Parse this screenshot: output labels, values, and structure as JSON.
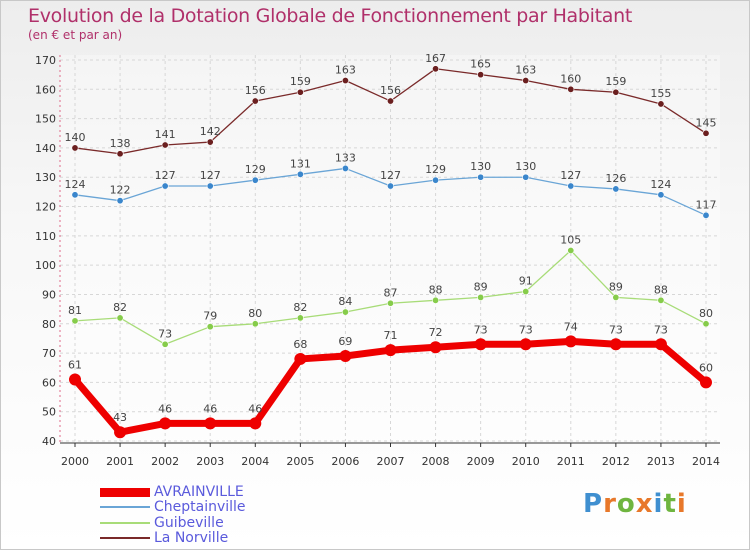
{
  "chart_data": {
    "type": "line",
    "title": "Evolution de la Dotation Globale de Fonctionnement par Habitant",
    "subtitle": "(en € et par an)",
    "xlabel": "",
    "ylabel": "",
    "ylim": [
      40,
      170
    ],
    "yticks": [
      40,
      50,
      60,
      70,
      80,
      90,
      100,
      110,
      120,
      130,
      140,
      150,
      160,
      170
    ],
    "categories": [
      "2000",
      "2001",
      "2002",
      "2003",
      "2004",
      "2005",
      "2006",
      "2007",
      "2008",
      "2009",
      "2010",
      "2011",
      "2012",
      "2013",
      "2014"
    ],
    "grid": true,
    "legend_position": "bottom-left",
    "series": [
      {
        "name": "AVRAINVILLE",
        "color": "#ee0000",
        "point_color": "#ee0000",
        "label_color": "#444444",
        "values": [
          61,
          43,
          46,
          46,
          46,
          68,
          69,
          71,
          72,
          73,
          73,
          74,
          73,
          73,
          60
        ]
      },
      {
        "name": "Cheptainville",
        "color": "#6aa5d6",
        "point_color": "#3a86cc",
        "label_color": "#444444",
        "values": [
          124,
          122,
          127,
          127,
          129,
          131,
          133,
          127,
          129,
          130,
          130,
          127,
          126,
          124,
          117
        ]
      },
      {
        "name": "Guibeville",
        "color": "#a8dc78",
        "point_color": "#86cc4a",
        "label_color": "#444444",
        "values": [
          81,
          82,
          73,
          79,
          80,
          82,
          84,
          87,
          88,
          89,
          91,
          105,
          89,
          88,
          80
        ]
      },
      {
        "name": "La Norville",
        "color": "#7a2a2a",
        "point_color": "#6b1f1f",
        "label_color": "#444444",
        "values": [
          140,
          138,
          141,
          142,
          156,
          159,
          163,
          156,
          167,
          165,
          163,
          160,
          159,
          155,
          145
        ]
      }
    ]
  },
  "legend": [
    {
      "label": "AVRAINVILLE",
      "color": "#ee0000",
      "text_color": "#5a5adc"
    },
    {
      "label": "Cheptainville",
      "color": "#6aa5d6",
      "text_color": "#5a5adc"
    },
    {
      "label": "Guibeville",
      "color": "#a8dc78",
      "text_color": "#5a5adc"
    },
    {
      "label": "La Norville",
      "color": "#7a2a2a",
      "text_color": "#5a5adc"
    }
  ],
  "logo": {
    "text": "Proxiti"
  }
}
